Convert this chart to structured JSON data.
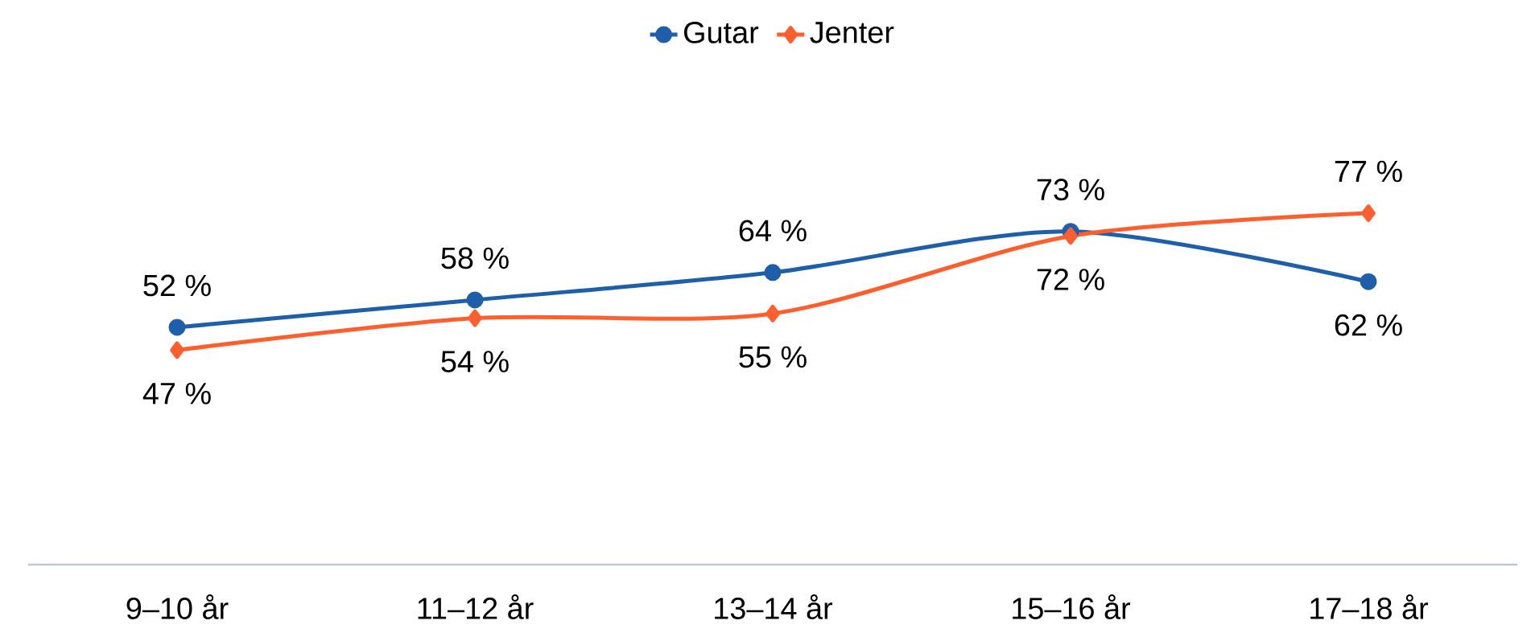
{
  "chart_data": {
    "type": "line",
    "categories": [
      "9–10 år",
      "11–12 år",
      "13–14 år",
      "15–16 år",
      "17–18 år"
    ],
    "series": [
      {
        "name": "Gutar",
        "color": "#1f5ea8",
        "marker": "circle",
        "values": [
          52,
          58,
          64,
          73,
          62
        ],
        "value_labels": [
          "52 %",
          "58 %",
          "64 %",
          "73 %",
          "62 %"
        ]
      },
      {
        "name": "Jenter",
        "color": "#ff5f2e",
        "marker": "diamond",
        "values": [
          47,
          54,
          55,
          72,
          77
        ],
        "value_labels": [
          "47 %",
          "54 %",
          "55 %",
          "72 %",
          "77 %"
        ]
      }
    ],
    "legend": "top",
    "line_style": "solid"
  }
}
